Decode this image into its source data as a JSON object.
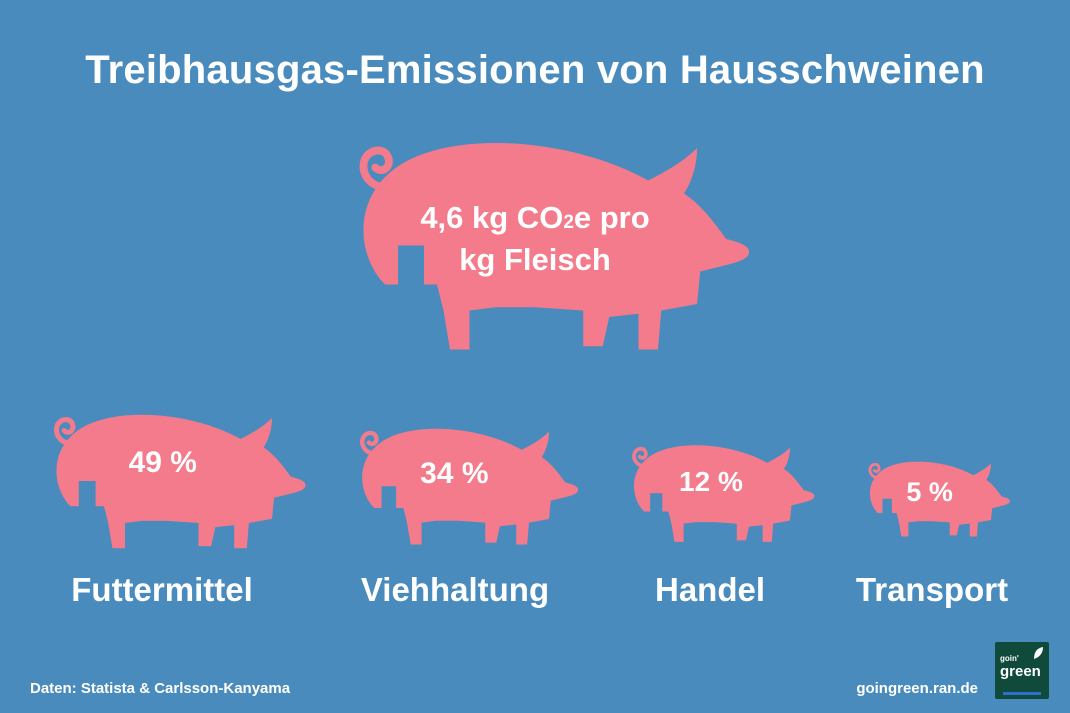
{
  "title": "Treibhausgas-Emissionen von Hausschweinen",
  "main_pig": {
    "line1_prefix": "4,6 kg CO",
    "line1_sub": "2",
    "line1_suffix": "e pro",
    "line2": "kg Fleisch"
  },
  "chart_data": {
    "type": "pictogram",
    "title": "Treibhausgas-Emissionen von Hausschweinen",
    "total": "4,6 kg CO2e pro kg Fleisch",
    "categories": [
      "Futtermittel",
      "Viehhaltung",
      "Handel",
      "Transport"
    ],
    "values": [
      49,
      34,
      12,
      5
    ],
    "value_labels": [
      "49 %",
      "34 %",
      "12 %",
      "5 %"
    ],
    "unit": "%"
  },
  "colors": {
    "background": "#4a8bbd",
    "pig": "#f47b8c",
    "text": "#ffffff",
    "logo": "#0f4a3a"
  },
  "footer": {
    "source": "Daten: Statista & Carlsson-Kanyama",
    "website": "goingreen.ran.de"
  },
  "logo": {
    "small": "goin'",
    "big": "green",
    "icon": "leaf-icon"
  }
}
